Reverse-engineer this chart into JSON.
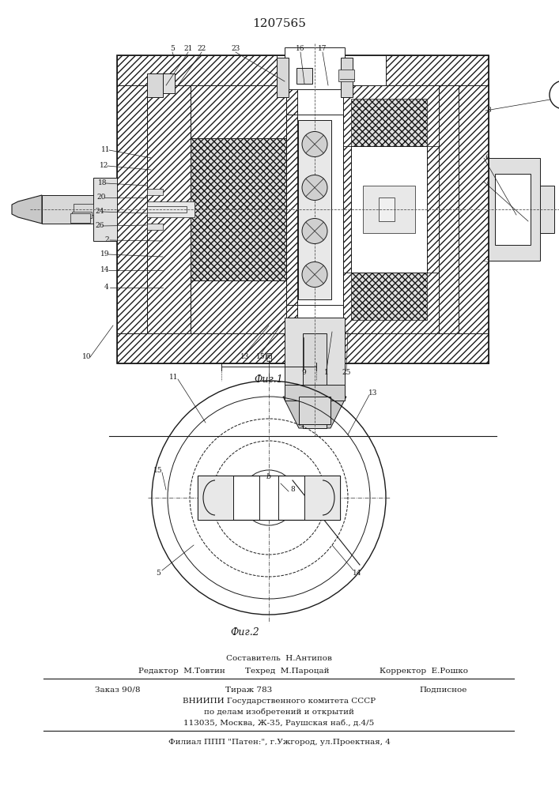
{
  "patent_number": "1207565",
  "fig1_caption": "Фиг.1",
  "fig2_caption": "Фиг.2",
  "dimension_label": "ℓ",
  "bg_color": "#ffffff",
  "line_color": "#1a1a1a",
  "text_color": "#1a1a1a",
  "footer_sestavitel": "Составитель  Н.Антипов",
  "footer_redaktor": "Редактор  М.Товтин",
  "footer_tehred": "Техред  М.Пароцай",
  "footer_korrektor": "Корректор  Е.Рошко",
  "footer_zakaz": "Заказ 90/8",
  "footer_tirazh": "Тираж 783",
  "footer_podpisnoe": "Подписное",
  "footer_vniipи": "ВНИИПИ Государственного комитета СССР",
  "footer_po_delam": "по делам изобретений и открытий",
  "footer_address": "113035, Москва, Ж-35, Раушская наб., д.4/5",
  "footer_filial": "Филиал ППП \"Патен:\", г.Ужгород, ул.Проектная, 4"
}
